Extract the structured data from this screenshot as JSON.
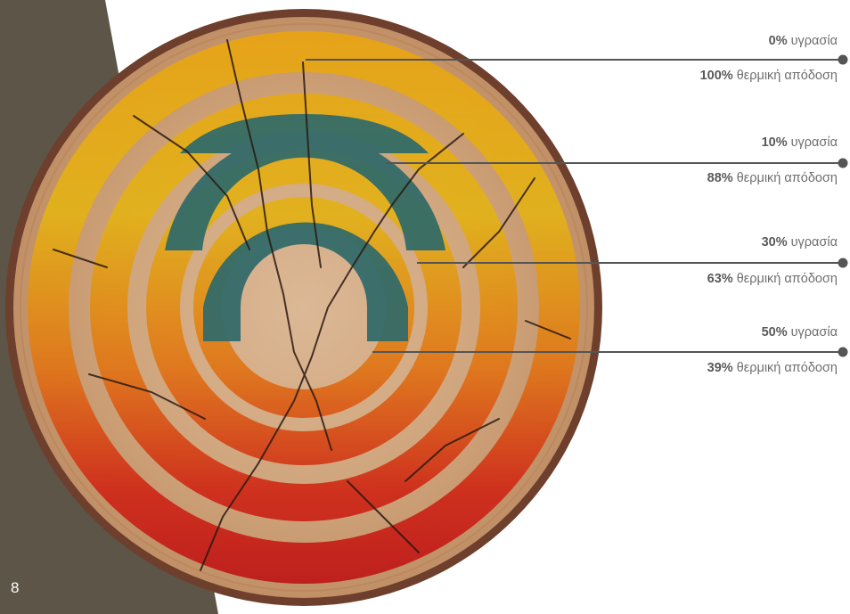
{
  "page_number": "8",
  "colors": {
    "side_band": "#5c5548",
    "wood_light": "#d6b08a",
    "wood_bark": "#7a4a34",
    "ring_orange": "#e48a12",
    "ring_yellow": "#e2b418",
    "ring_red": "#c9201b",
    "teal": "#2f6a6a",
    "leader_line": "#555555"
  },
  "labels": [
    {
      "moisture_value": "0%",
      "moisture_label": "υγρασία",
      "efficiency_value": "100%",
      "efficiency_label": "θερμική απόδοση"
    },
    {
      "moisture_value": "10%",
      "moisture_label": "υγρασία",
      "efficiency_value": "88%",
      "efficiency_label": "θερμική απόδοση"
    },
    {
      "moisture_value": "30%",
      "moisture_label": "υγρασία",
      "efficiency_value": "63%",
      "efficiency_label": "θερμική απόδοση"
    },
    {
      "moisture_value": "50%",
      "moisture_label": "υγρασία",
      "efficiency_value": "39%",
      "efficiency_label": "θερμική απόδοση"
    }
  ]
}
